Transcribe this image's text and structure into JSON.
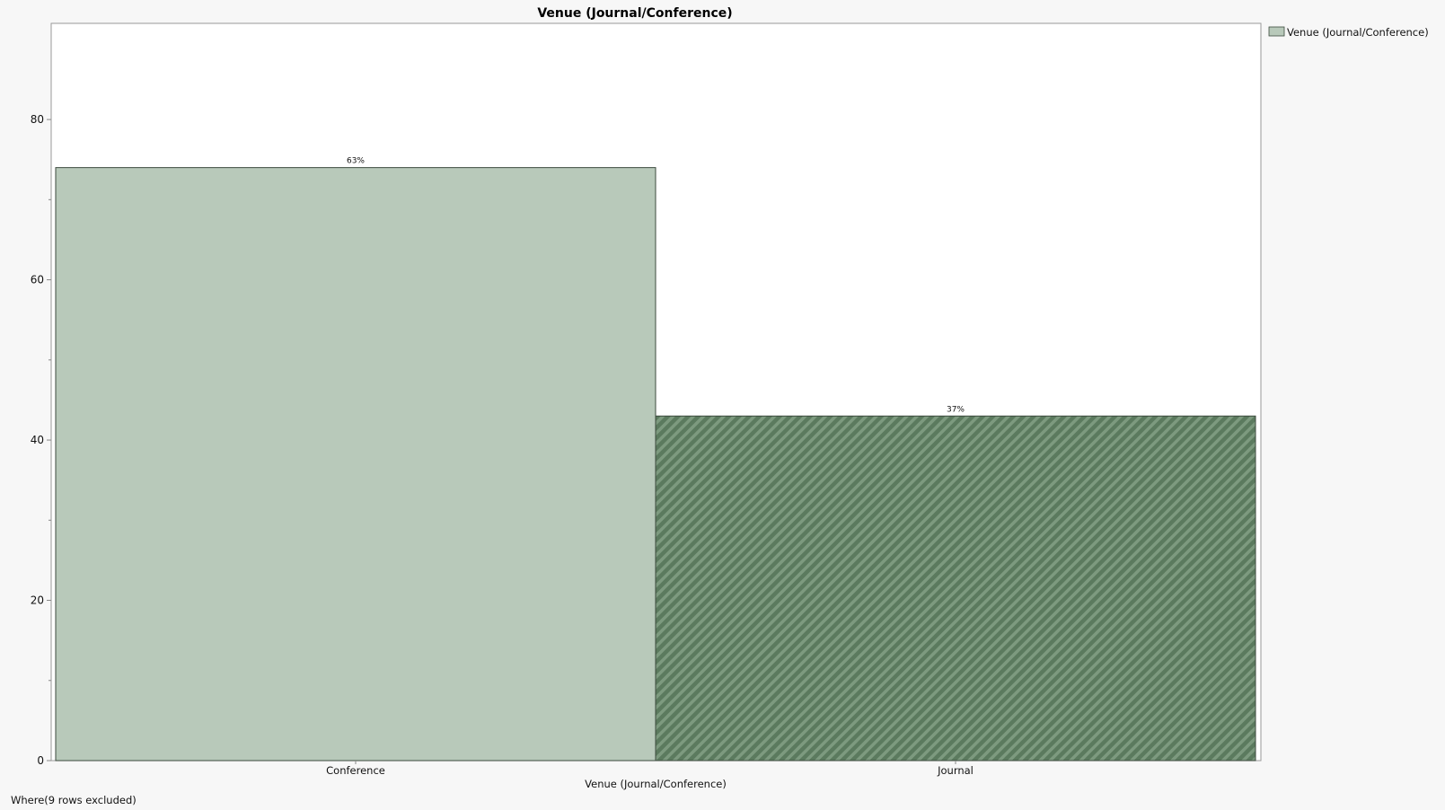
{
  "chart_data": {
    "type": "bar",
    "title": "Venue (Journal/Conference)",
    "xlabel": "Venue (Journal/Conference)",
    "ylabel": "",
    "categories": [
      "Conference",
      "Journal"
    ],
    "values": [
      74,
      43
    ],
    "data_labels": [
      "63%",
      "37%"
    ],
    "ylim": [
      0,
      92
    ],
    "yticks": [
      0,
      20,
      40,
      60,
      80
    ],
    "legend": {
      "entries": [
        "Venue (Journal/Conference)"
      ],
      "placement": "top-right, outside plot"
    },
    "grid": false,
    "colors": {
      "conference_fill": "#b8c9ba",
      "journal_fill": "#5b7a5e",
      "journal_hatch": "#7d9a7f",
      "bar_stroke": "#3c4a3e"
    },
    "footnote": "Where(9 rows excluded)"
  }
}
